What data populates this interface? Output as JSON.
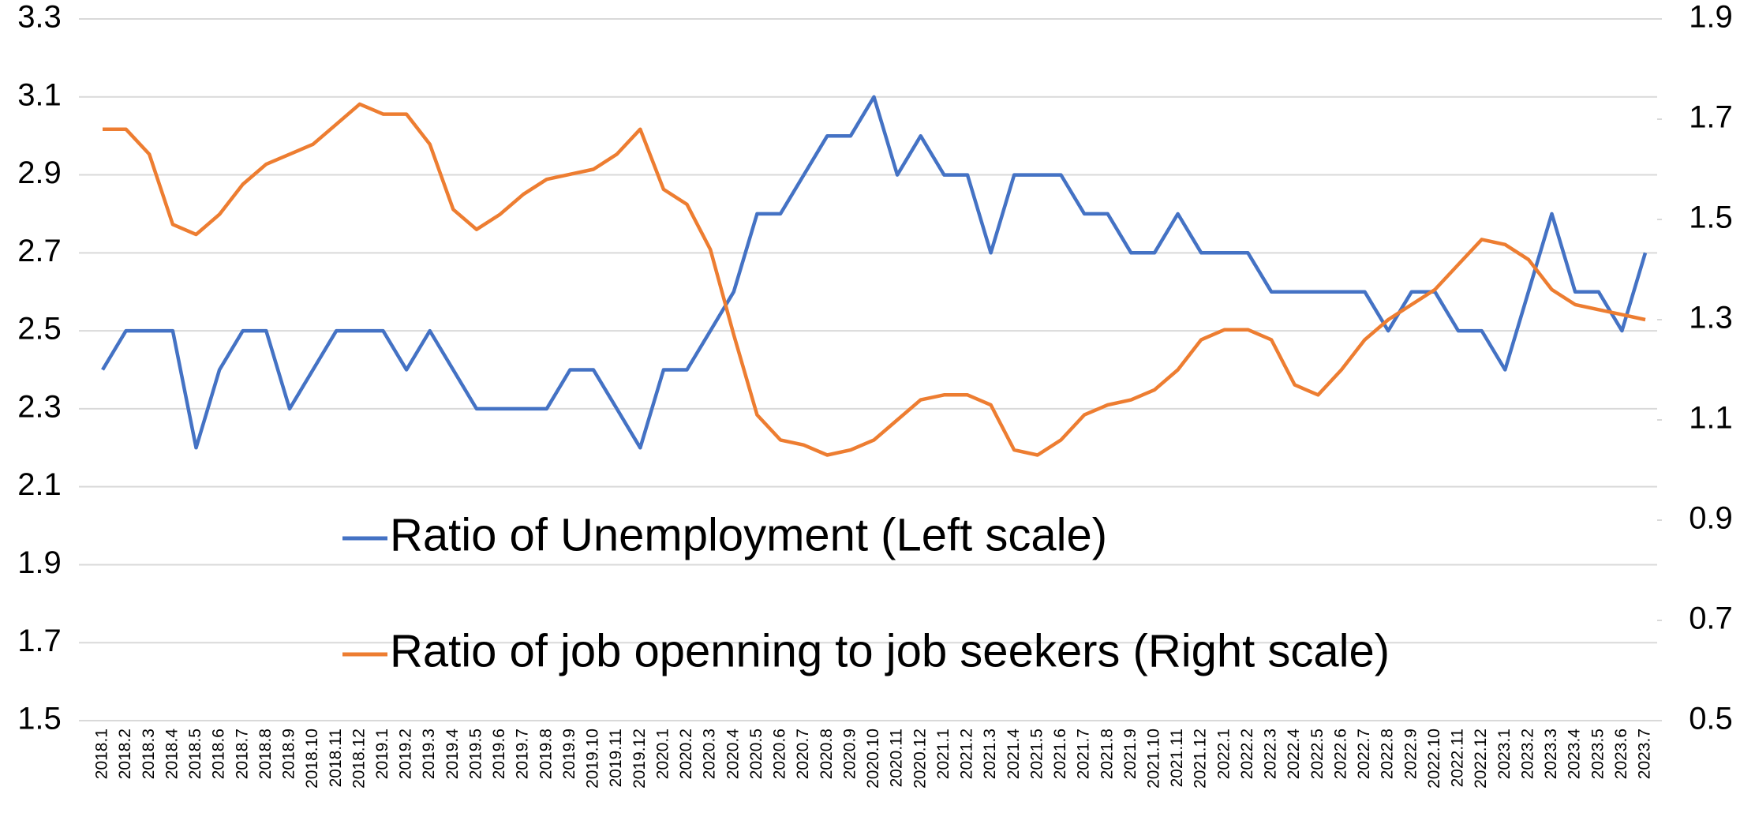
{
  "chart_data": {
    "type": "line",
    "categories": [
      "2018.1",
      "2018.2",
      "2018.3",
      "2018.4",
      "2018.5",
      "2018.6",
      "2018.7",
      "2018.8",
      "2018.9",
      "2018.10",
      "2018.11",
      "2018.12",
      "2019.1",
      "2019.2",
      "2019.3",
      "2019.4",
      "2019.5",
      "2019.6",
      "2019.7",
      "2019.8",
      "2019.9",
      "2019.10",
      "2019.11",
      "2019.12",
      "2020.1",
      "2020.2",
      "2020.3",
      "2020.4",
      "2020.5",
      "2020.6",
      "2020.7",
      "2020.8",
      "2020.9",
      "2020.10",
      "2020.11",
      "2020.12",
      "2021.1",
      "2021.2",
      "2021.3",
      "2021.4",
      "2021.5",
      "2021.6",
      "2021.7",
      "2021.8",
      "2021.9",
      "2021.10",
      "2021.11",
      "2021.12",
      "2022.1",
      "2022.2",
      "2022.3",
      "2022.4",
      "2022.5",
      "2022.6",
      "2022.7",
      "2022.8",
      "2022.9",
      "2022.10",
      "2022.11",
      "2022.12",
      "2023.1",
      "2023.2",
      "2023.3",
      "2023.4",
      "2023.5",
      "2023.6",
      "2023.7"
    ],
    "series": [
      {
        "name": "Ratio of Unemployment (Left scale)",
        "color": "#4472c4",
        "axis": "y",
        "values": [
          2.4,
          2.5,
          2.5,
          2.5,
          2.2,
          2.4,
          2.5,
          2.5,
          2.3,
          2.4,
          2.5,
          2.5,
          2.5,
          2.4,
          2.5,
          2.4,
          2.3,
          2.3,
          2.3,
          2.3,
          2.4,
          2.4,
          2.3,
          2.2,
          2.4,
          2.4,
          2.5,
          2.6,
          2.8,
          2.8,
          2.9,
          3.0,
          3.0,
          3.1,
          2.9,
          3.0,
          2.9,
          2.9,
          2.7,
          2.9,
          2.9,
          2.9,
          2.8,
          2.8,
          2.7,
          2.7,
          2.8,
          2.7,
          2.7,
          2.7,
          2.6,
          2.6,
          2.6,
          2.6,
          2.6,
          2.5,
          2.6,
          2.6,
          2.5,
          2.5,
          2.4,
          2.6,
          2.8,
          2.6,
          2.6,
          2.5,
          2.7
        ]
      },
      {
        "name": "Ratio of job openning to job seekers (Right scale)",
        "color": "#ed7d31",
        "axis": "y2",
        "values": [
          1.68,
          1.68,
          1.63,
          1.49,
          1.47,
          1.51,
          1.57,
          1.61,
          1.63,
          1.65,
          1.69,
          1.73,
          1.71,
          1.71,
          1.65,
          1.52,
          1.48,
          1.51,
          1.55,
          1.58,
          1.59,
          1.6,
          1.63,
          1.68,
          1.56,
          1.53,
          1.44,
          1.27,
          1.11,
          1.06,
          1.05,
          1.03,
          1.04,
          1.06,
          1.1,
          1.14,
          1.15,
          1.15,
          1.13,
          1.04,
          1.03,
          1.06,
          1.11,
          1.13,
          1.14,
          1.16,
          1.2,
          1.26,
          1.28,
          1.28,
          1.26,
          1.17,
          1.15,
          1.2,
          1.26,
          1.3,
          1.33,
          1.36,
          1.41,
          1.46,
          1.45,
          1.42,
          1.36,
          1.33,
          1.32,
          1.31,
          1.3
        ]
      }
    ],
    "ylim": [
      1.5,
      3.3
    ],
    "yticks": [
      1.5,
      1.7,
      1.9,
      2.1,
      2.3,
      2.5,
      2.7,
      2.9,
      3.1,
      3.3
    ],
    "y2lim": [
      0.5,
      1.9
    ],
    "y2ticks": [
      0.5,
      0.7,
      0.9,
      1.1,
      1.3,
      1.5,
      1.7,
      1.9
    ],
    "grid": true
  }
}
